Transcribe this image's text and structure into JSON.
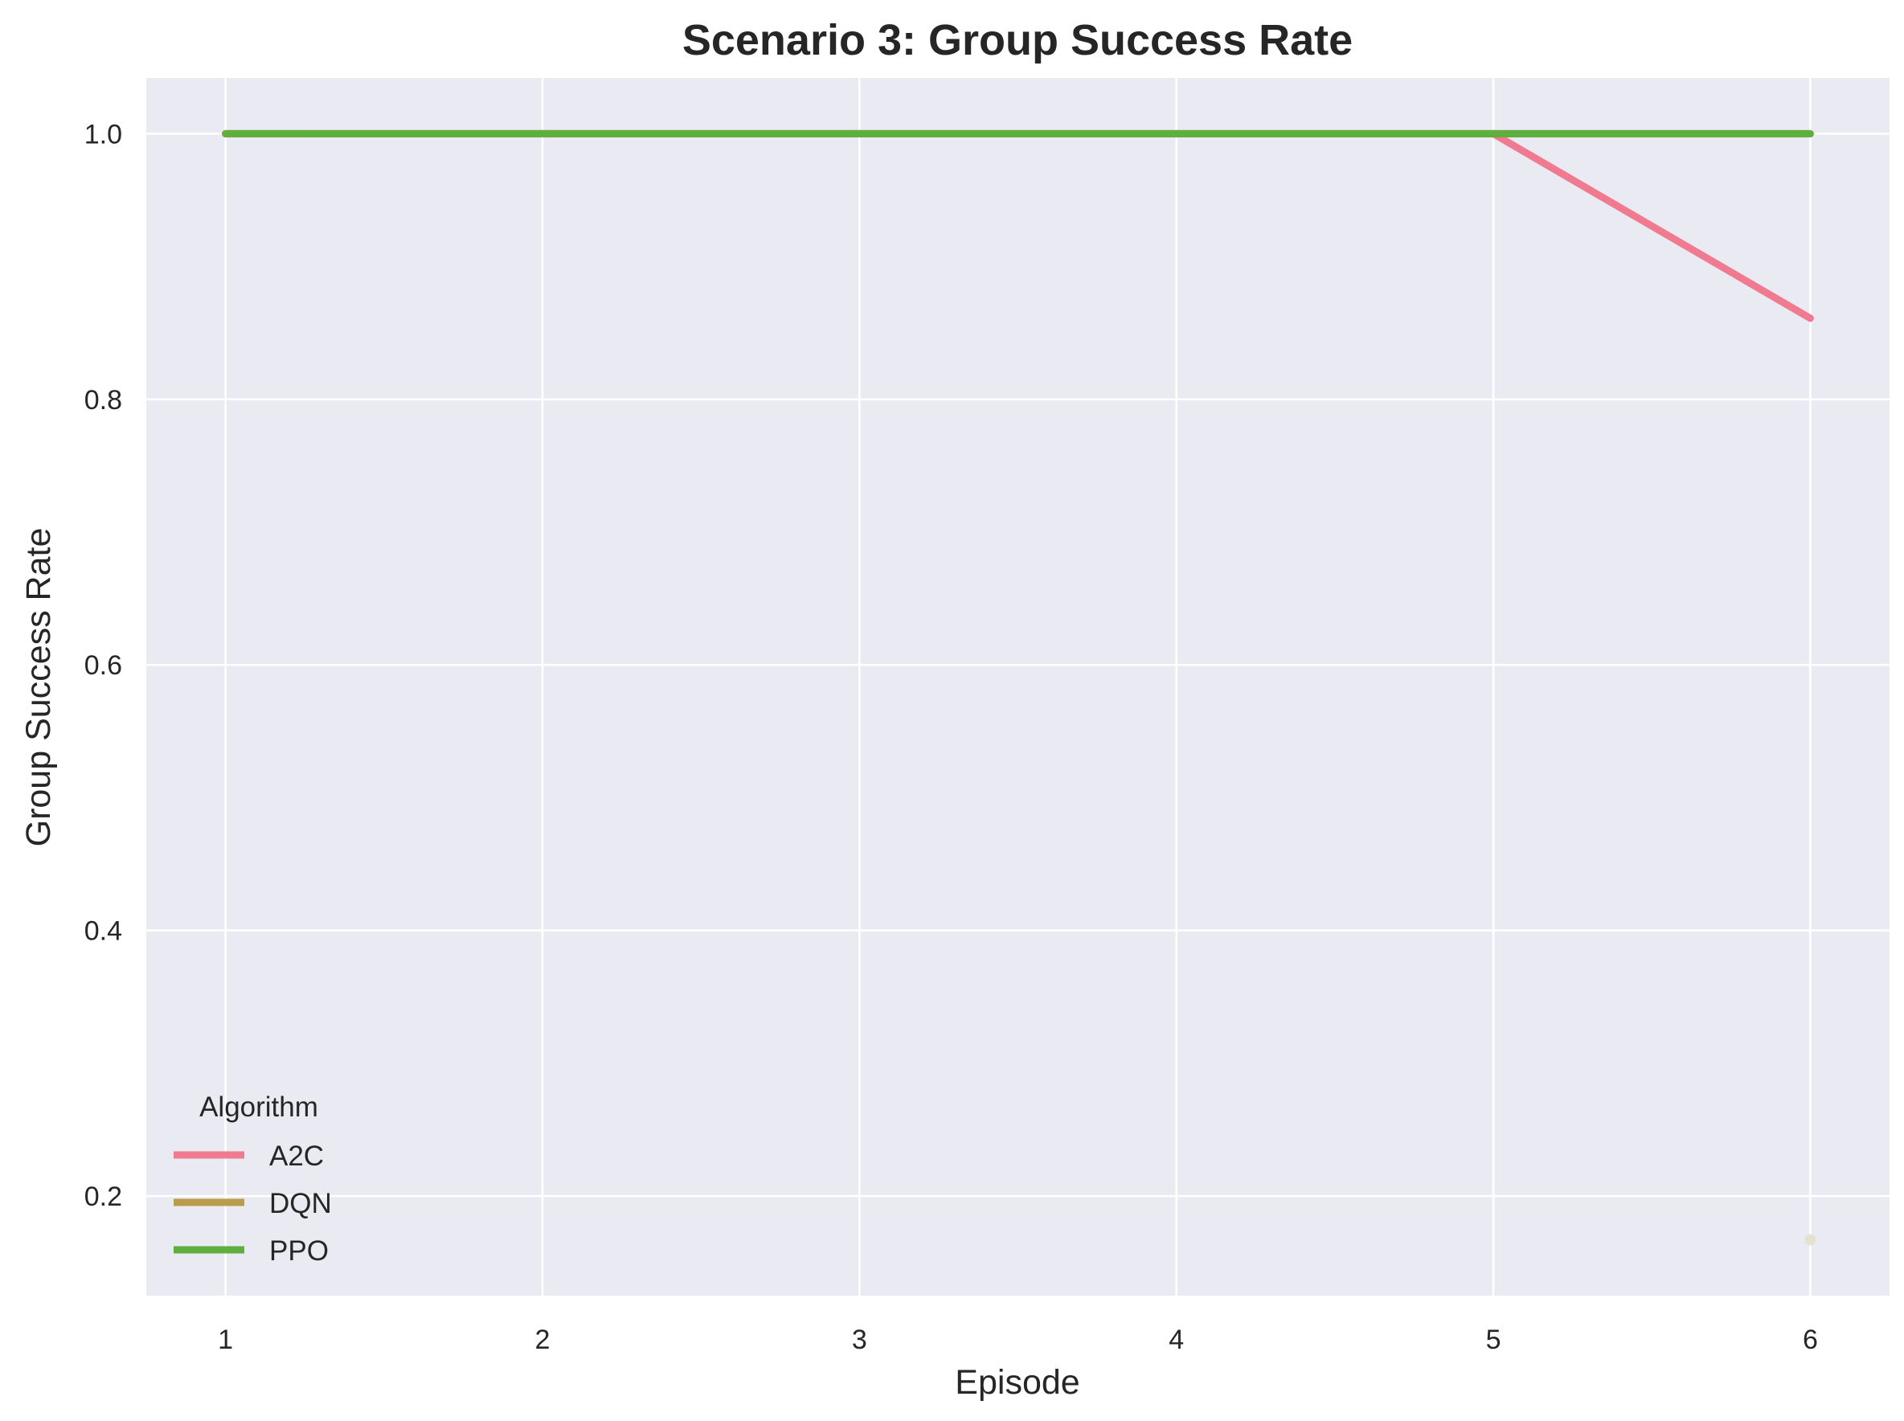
{
  "chart_data": {
    "type": "line",
    "title": "Scenario 3: Group Success Rate",
    "xlabel": "Episode",
    "ylabel": "Group Success Rate",
    "x": [
      1,
      2,
      3,
      4,
      5,
      6
    ],
    "xlim": [
      0.75,
      6.25
    ],
    "ylim": [
      0.125,
      1.042
    ],
    "xticks": [
      "1",
      "2",
      "3",
      "4",
      "5",
      "6"
    ],
    "yticks": [
      "0.2",
      "0.4",
      "0.6",
      "0.8",
      "1.0"
    ],
    "grid": true,
    "legend_title": "Algorithm",
    "legend_position": "lower-left",
    "series": [
      {
        "name": "A2C",
        "color": "#f07b91",
        "values": [
          1.0,
          1.0,
          1.0,
          1.0,
          1.0,
          0.861
        ]
      },
      {
        "name": "DQN",
        "color": "#bb9c4c",
        "values": [
          1.0,
          1.0,
          1.0,
          1.0,
          1.0,
          1.0
        ]
      },
      {
        "name": "PPO",
        "color": "#5faf3f",
        "values": [
          1.0,
          1.0,
          1.0,
          1.0,
          1.0,
          1.0
        ]
      }
    ],
    "extra_points": [
      {
        "x": 6,
        "y": 0.167,
        "color": "#e6e0cf"
      }
    ]
  }
}
